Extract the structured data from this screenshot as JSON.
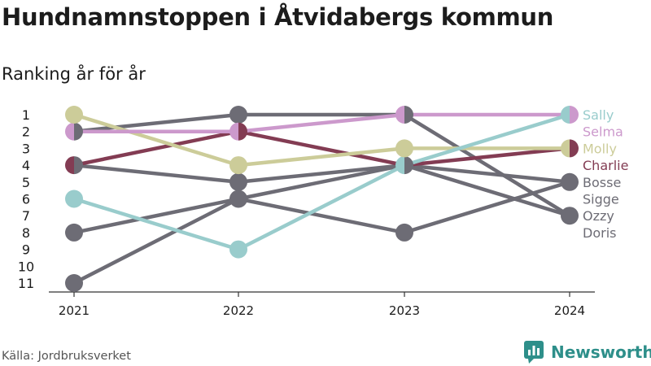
{
  "title": "Hundnamnstoppen i Åtvidabergs kommun",
  "subtitle": "Ranking år för år",
  "source": "Källa: Jordbruksverket",
  "brand": {
    "name": "Newsworthy",
    "icon": "newsworthy-logo-icon",
    "color": "#2e8f8a"
  },
  "chart_data": {
    "type": "line",
    "title": "Hundnamnstoppen i Åtvidabergs kommun",
    "subtitle": "Ranking år för år",
    "x": [
      "2021",
      "2022",
      "2023",
      "2024"
    ],
    "y_ticks": [
      1,
      2,
      3,
      4,
      5,
      6,
      7,
      8,
      9,
      10,
      11
    ],
    "ylim": [
      1,
      11
    ],
    "y_inverted": true,
    "grid": false,
    "legend": "right-end labels",
    "series": [
      {
        "name": "Doris",
        "values": [
          2,
          1,
          1,
          7
        ],
        "color": "#6d6c75",
        "label_rank": 8
      },
      {
        "name": "Ozzy",
        "values": [
          8,
          6,
          4,
          7
        ],
        "color": "#6d6c75",
        "label_rank": 7
      },
      {
        "name": "Sigge",
        "values": [
          11,
          6,
          8,
          5
        ],
        "color": "#6d6c75",
        "label_rank": 6
      },
      {
        "name": "Bosse",
        "values": [
          4,
          5,
          4,
          5
        ],
        "color": "#6d6c75",
        "label_rank": 5
      },
      {
        "name": "Charlie",
        "values": [
          4,
          2,
          4,
          3
        ],
        "color": "#833c53",
        "label_rank": 4
      },
      {
        "name": "Molly",
        "values": [
          1,
          4,
          3,
          3
        ],
        "color": "#cccc99",
        "label_rank": 3
      },
      {
        "name": "Selma",
        "values": [
          2,
          2,
          1,
          1
        ],
        "color": "#cc99cc",
        "label_rank": 2
      },
      {
        "name": "Sally",
        "values": [
          6,
          9,
          4,
          1
        ],
        "color": "#99cccc",
        "label_rank": 1
      }
    ]
  }
}
